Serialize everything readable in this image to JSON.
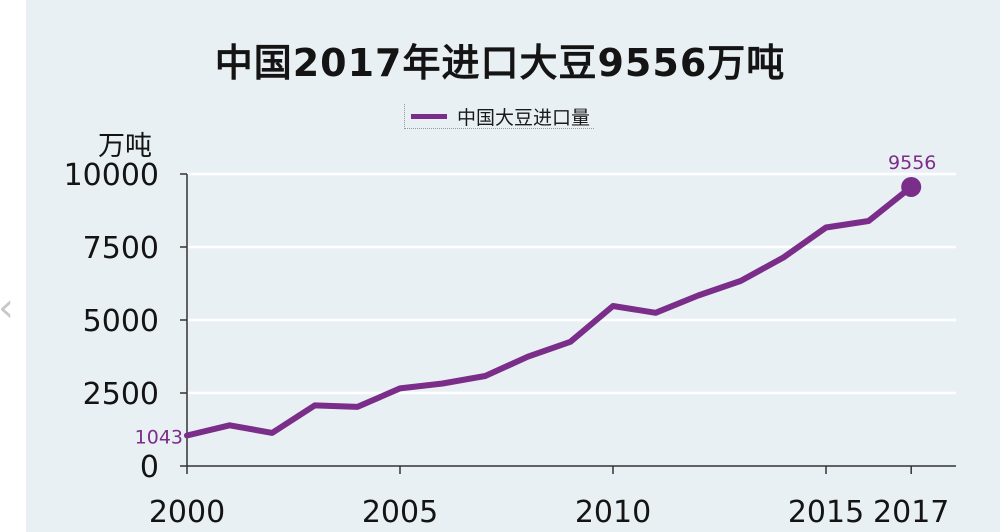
{
  "title": "中国2017年进口大豆9556万吨",
  "nav": {
    "back_glyph": "‹"
  },
  "chart_data": {
    "type": "line",
    "title": "中国2017年进口大豆9556万吨",
    "xlabel": "",
    "ylabel": "万吨",
    "x": [
      2000,
      2001,
      2002,
      2003,
      2004,
      2005,
      2006,
      2007,
      2008,
      2009,
      2010,
      2011,
      2012,
      2013,
      2014,
      2015,
      2016,
      2017
    ],
    "series": [
      {
        "name": "中国大豆进口量",
        "color": "#7b2d8a",
        "values": [
          1043,
          1394,
          1132,
          2074,
          2023,
          2659,
          2827,
          3082,
          3744,
          4255,
          5480,
          5245,
          5838,
          6338,
          7140,
          8169,
          8391,
          9556
        ]
      }
    ],
    "xlim": [
      2000,
      2018
    ],
    "ylim": [
      0,
      10000
    ],
    "y_ticks": [
      0,
      2500,
      5000,
      7500,
      10000
    ],
    "x_ticks": [
      2000,
      2005,
      2010,
      2015,
      2017
    ],
    "annotations": [
      {
        "x": 2000,
        "y": 1043,
        "text": "1043"
      },
      {
        "x": 2017,
        "y": 9556,
        "text": "9556"
      }
    ],
    "grid": true,
    "legend_position": "top-center"
  }
}
